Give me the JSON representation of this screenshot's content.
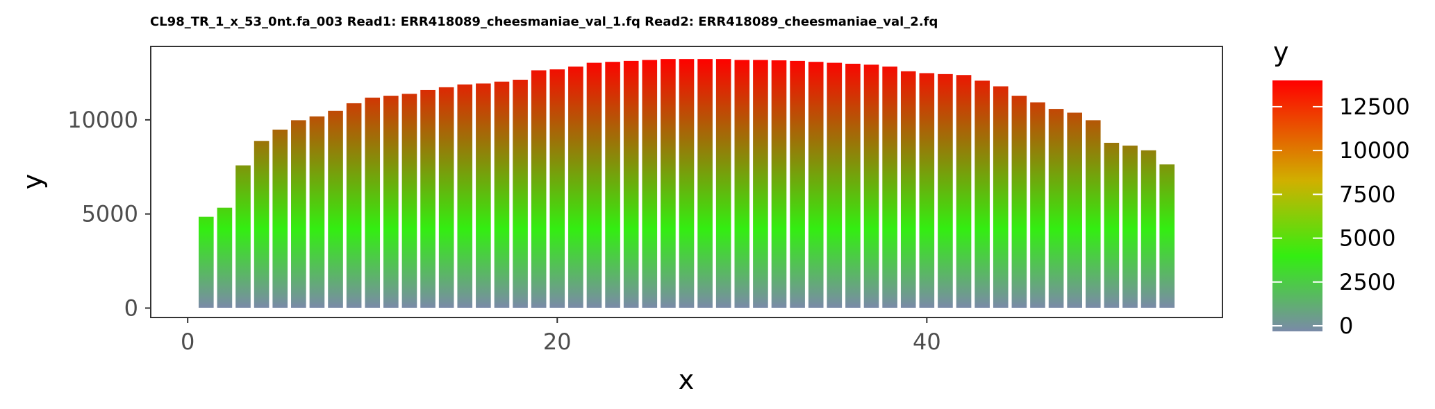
{
  "chart_data": {
    "type": "bar",
    "title": "CL98_TR_1_x_53_0nt.fa_003 Read1: ERR418089_cheesmaniae_val_1.fq Read2: ERR418089_cheesmaniae_val_2.fq",
    "xlabel": "x",
    "ylabel": "y",
    "xlim": [
      -2,
      56
    ],
    "ylim": [
      -500,
      13900
    ],
    "x_ticks": [
      0,
      20,
      40
    ],
    "y_ticks": [
      0,
      5000,
      10000
    ],
    "x": [
      1,
      2,
      3,
      4,
      5,
      6,
      7,
      8,
      9,
      10,
      11,
      12,
      13,
      14,
      15,
      16,
      17,
      18,
      19,
      20,
      21,
      22,
      23,
      24,
      25,
      26,
      27,
      28,
      29,
      30,
      31,
      32,
      33,
      34,
      35,
      36,
      37,
      38,
      39,
      40,
      41,
      42,
      43,
      44,
      45,
      46,
      47,
      48,
      49,
      50,
      51,
      52,
      53
    ],
    "values": [
      4870,
      5350,
      7600,
      8900,
      9500,
      10000,
      10200,
      10500,
      10900,
      11200,
      11300,
      11400,
      11600,
      11750,
      11900,
      11950,
      12050,
      12150,
      12650,
      12700,
      12850,
      13050,
      13100,
      13150,
      13200,
      13250,
      13250,
      13250,
      13250,
      13200,
      13200,
      13180,
      13150,
      13100,
      13050,
      13000,
      12950,
      12850,
      12600,
      12500,
      12450,
      12400,
      12100,
      11800,
      11300,
      10950,
      10600,
      10400,
      10000,
      8800,
      8650,
      8400,
      7650
    ],
    "grid": false,
    "legend": {
      "title": "y",
      "position": "right",
      "ticks": [
        0,
        2500,
        5000,
        7500,
        10000,
        12500
      ]
    },
    "colors": {
      "low": "#7a8aa8",
      "mid": "#33ee11",
      "high": "#ff0000",
      "bar_outline": "#ffffff",
      "panel_border": "#333333"
    }
  }
}
